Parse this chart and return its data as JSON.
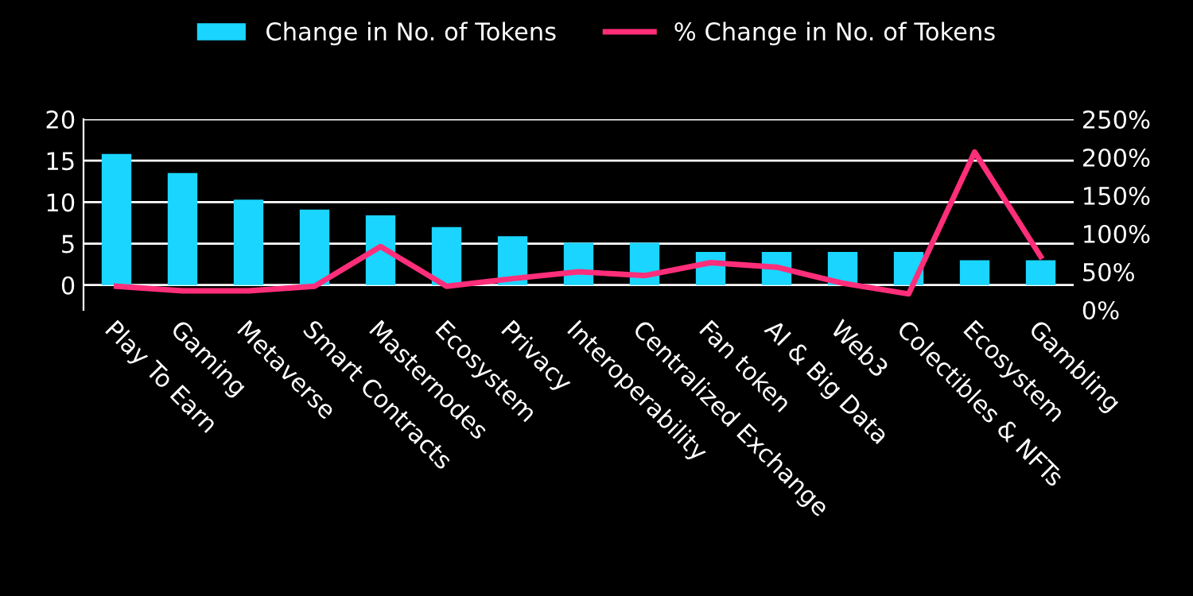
{
  "chart_data": {
    "type": "bar",
    "categories": [
      "Play To Earn",
      "Gaming",
      "Metaverse",
      "Smart Contracts",
      "Masternodes",
      "Ecosystem",
      "Privacy",
      "Interoperability",
      "Centralized Exchange",
      "Fan token",
      "AI & Big Data",
      "Web3",
      "Colectibles & NFTs",
      "Ecosystem",
      "Gambling"
    ],
    "series": [
      {
        "name": "Change in No. of Tokens",
        "color": "#1ad5ff",
        "values": [
          15.8,
          13.5,
          10.3,
          9.1,
          8.4,
          7,
          5.9,
          5.1,
          5.1,
          4,
          4,
          4,
          4,
          3,
          3
        ]
      },
      {
        "name": "% Change in No. of Tokens",
        "color": "#ff2e7a",
        "type": "line",
        "axis": "y2",
        "values": [
          31,
          25,
          25,
          31,
          83,
          31,
          41,
          50,
          45,
          62,
          56,
          35,
          21,
          207,
          70
        ]
      }
    ],
    "ylim": [
      -3,
      20
    ],
    "yticks": [
      0,
      5,
      10,
      15,
      20
    ],
    "y2lim": [
      0,
      250
    ],
    "y2ticks": [
      {
        "value": 0,
        "label": "0%"
      },
      {
        "value": 50,
        "label": "50%"
      },
      {
        "value": 100,
        "label": "100%"
      },
      {
        "value": 150,
        "label": "150%"
      },
      {
        "value": 200,
        "label": "200%"
      },
      {
        "value": 250,
        "label": "250%"
      }
    ],
    "grid": "y",
    "legend": "top"
  }
}
